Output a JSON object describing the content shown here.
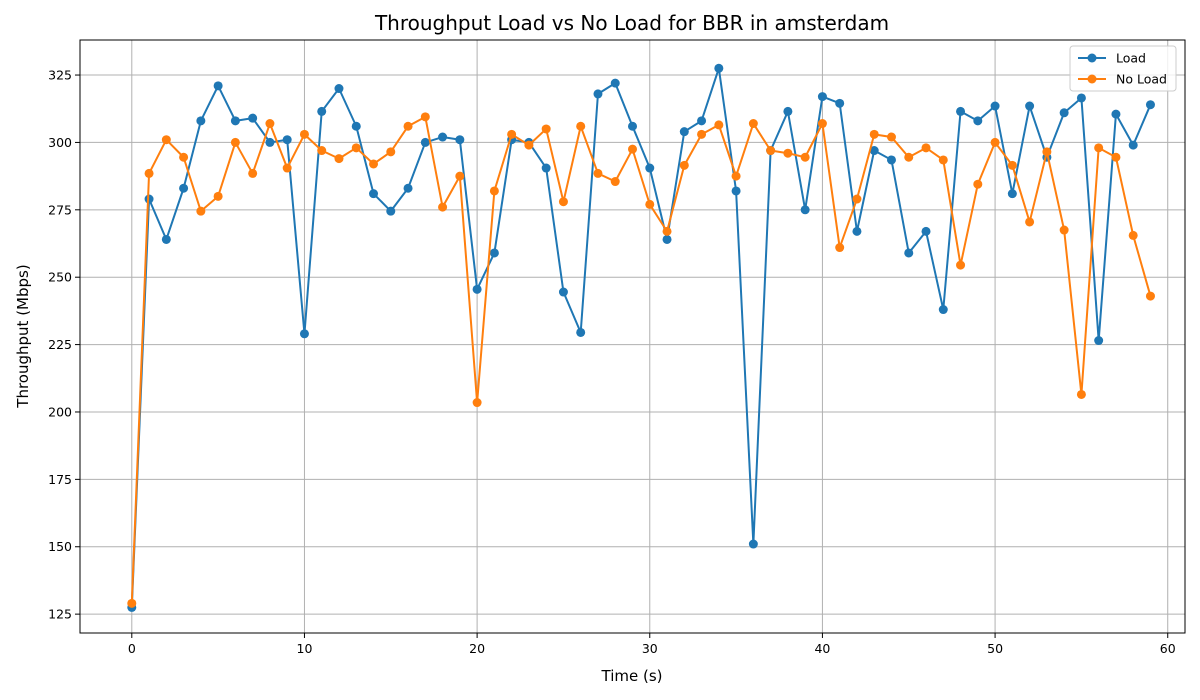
{
  "chart_data": {
    "type": "line",
    "title": "Throughput Load vs No Load for BBR in amsterdam",
    "xlabel": "Time (s)",
    "ylabel": "Throughput (Mbps)",
    "xlim": [
      -3,
      61
    ],
    "ylim": [
      118,
      338
    ],
    "xticks": [
      0,
      10,
      20,
      30,
      40,
      50,
      60
    ],
    "yticks": [
      125,
      150,
      175,
      200,
      225,
      250,
      275,
      300,
      325
    ],
    "grid": true,
    "legend_position": "top-right",
    "x": [
      0,
      1,
      2,
      3,
      4,
      5,
      6,
      7,
      8,
      9,
      10,
      11,
      12,
      13,
      14,
      15,
      16,
      17,
      18,
      19,
      20,
      21,
      22,
      23,
      24,
      25,
      26,
      27,
      28,
      29,
      30,
      31,
      32,
      33,
      34,
      35,
      36,
      37,
      38,
      39,
      40,
      41,
      42,
      43,
      44,
      45,
      46,
      47,
      48,
      49,
      50,
      51,
      52,
      53,
      54,
      55,
      56,
      57,
      58,
      59
    ],
    "series": [
      {
        "name": "Load",
        "color": "#1f77b4",
        "values": [
          127.5,
          279,
          264,
          283,
          308,
          321,
          308,
          309,
          300,
          301,
          229,
          311.5,
          320,
          306,
          281,
          274.5,
          283,
          300,
          302,
          301,
          245.5,
          259,
          301,
          300,
          290.5,
          244.5,
          229.5,
          318,
          322,
          306,
          290.5,
          264,
          304,
          308,
          327.5,
          282,
          151,
          297,
          311.5,
          275,
          317,
          314.5,
          267,
          297,
          293.5,
          259,
          267,
          238,
          311.5,
          308,
          313.5,
          281,
          313.5,
          294.5,
          311,
          316.5,
          226.5,
          310.5,
          299,
          314
        ]
      },
      {
        "name": "No Load",
        "color": "#ff7f0e",
        "values": [
          129,
          288.5,
          301,
          294.5,
          274.5,
          280,
          300,
          288.5,
          307,
          290.5,
          303,
          297,
          294,
          298,
          292,
          296.5,
          306,
          309.5,
          276,
          287.5,
          203.5,
          282,
          303,
          299,
          305,
          278,
          306,
          288.5,
          285.5,
          297.5,
          277,
          267,
          291.5,
          303,
          306.5,
          287.5,
          307,
          297,
          296,
          294.5,
          307,
          261,
          279,
          303,
          302,
          294.5,
          298,
          293.5,
          254.5,
          284.5,
          300,
          291.5,
          270.5,
          296.5,
          267.5,
          206.5,
          298,
          294.5,
          265.5,
          243
        ]
      }
    ]
  }
}
